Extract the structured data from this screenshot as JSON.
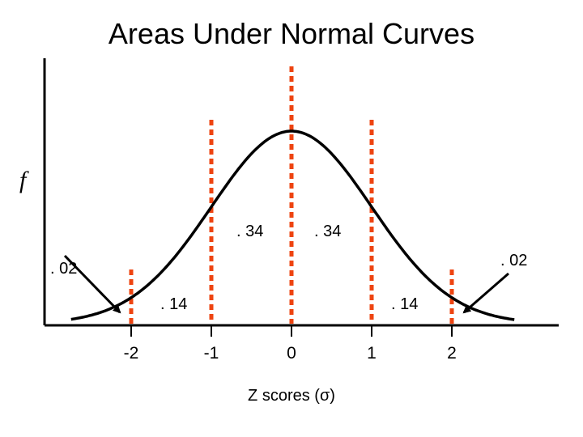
{
  "chart_data": {
    "type": "line",
    "title": "Areas  Under Normal Curves",
    "xlabel": "Z scores (σ)",
    "ylabel": "f",
    "xlim": [
      -2.0,
      2.8
    ],
    "tick_labels": [
      "-2",
      "-1",
      "0",
      "1",
      "2"
    ],
    "tick_values": [
      -2,
      -1,
      0,
      1,
      2
    ],
    "reference_lines": [
      -2,
      -1,
      0,
      1,
      2
    ],
    "curve": "standard normal density",
    "areas": [
      {
        "label": ". 02",
        "region": "z < -2"
      },
      {
        "label": ". 14",
        "region": "-2 to -1"
      },
      {
        "label": ". 34",
        "region": "-1 to 0"
      },
      {
        "label": ". 34",
        "region": "0 to 1"
      },
      {
        "label": ". 14",
        "region": "1 to 2"
      },
      {
        "label": ". 02",
        "region": "z > 2"
      }
    ],
    "grid": false,
    "colors": {
      "curve": "#000000",
      "reference_line": "#ee4411",
      "axis": "#000000"
    }
  }
}
